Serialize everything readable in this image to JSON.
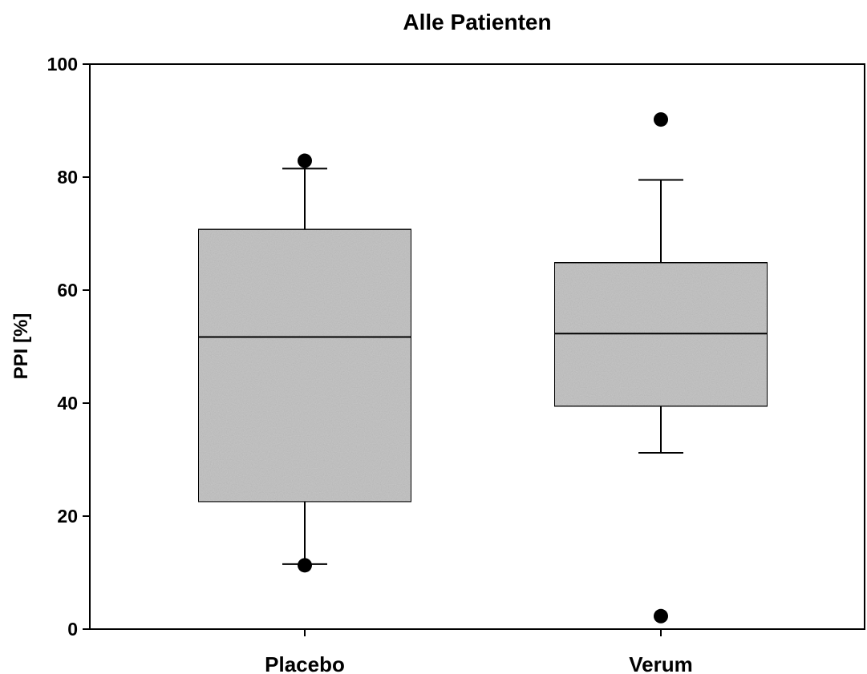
{
  "chart_data": {
    "type": "boxplot",
    "title": "Alle Patienten",
    "xlabel": "",
    "ylabel": "PPI [%]",
    "ylim": [
      0,
      100
    ],
    "yticks": [
      "0",
      "20",
      "40",
      "60",
      "80",
      "100"
    ],
    "categories": [
      "Placebo",
      "Verum"
    ],
    "boxes": [
      {
        "category": "Placebo",
        "whisker_low": 11.5,
        "q1": 22.5,
        "median": 51.7,
        "q3": 70.8,
        "whisker_high": 81.5,
        "outliers": [
          82.9,
          11.3
        ]
      },
      {
        "category": "Verum",
        "whisker_low": 31.2,
        "q1": 39.4,
        "median": 52.3,
        "q3": 64.9,
        "whisker_high": 79.5,
        "outliers": [
          90.2,
          2.3
        ]
      }
    ],
    "grid": false,
    "box_fill_color": "#c6c6c6",
    "line_color": "#000000"
  }
}
